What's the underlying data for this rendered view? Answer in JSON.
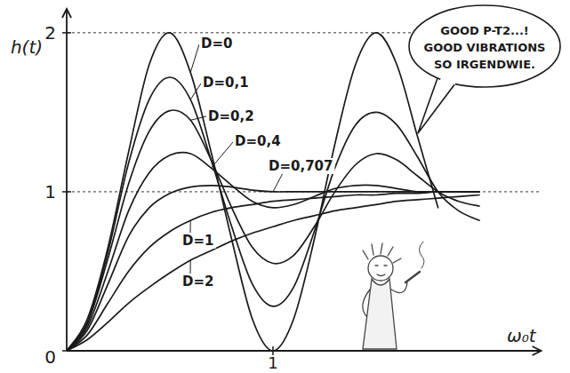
{
  "chart_data": {
    "type": "line",
    "x_label": "ω₀t",
    "y_label": "h(t)",
    "annotations": [
      "GOOD P-T2...!",
      "GOOD VIBRATIONS",
      "SO IRGENDWIE."
    ],
    "x": [
      0,
      0.1,
      0.2,
      0.3,
      0.4,
      0.5,
      0.6,
      0.7,
      0.8,
      0.9,
      1.0,
      1.1,
      1.2,
      1.3,
      1.4,
      1.5,
      1.6,
      1.7,
      1.8,
      1.9,
      2.0
    ],
    "xlim": [
      0,
      2.3
    ],
    "xticks": [
      1
    ],
    "ylim": [
      0,
      2.15
    ],
    "yticks": [
      0,
      1,
      2
    ],
    "grid": true,
    "series": [
      {
        "name": "D=0",
        "color": "#1a1a1a",
        "values": [
          0,
          0.2,
          0.65,
          1.25,
          1.8,
          2.0,
          1.75,
          1.25,
          0.7,
          0.2,
          0,
          0.2,
          0.7,
          1.3,
          1.8,
          2.0,
          1.8,
          1.35,
          0.9,
          null,
          null
        ]
      },
      {
        "name": "D=0,1",
        "color": "#1a1a1a",
        "values": [
          0,
          0.18,
          0.62,
          1.18,
          1.58,
          1.72,
          1.58,
          1.2,
          0.78,
          0.42,
          0.28,
          0.4,
          0.75,
          1.15,
          1.42,
          1.5,
          1.42,
          1.22,
          1.0,
          0.88,
          0.82
        ]
      },
      {
        "name": "D=0,2",
        "color": "#1a1a1a",
        "values": [
          0,
          0.17,
          0.58,
          1.05,
          1.38,
          1.51,
          1.45,
          1.2,
          0.9,
          0.65,
          0.55,
          0.6,
          0.78,
          1.0,
          1.17,
          1.24,
          1.2,
          1.1,
          1.0,
          0.94,
          0.91
        ]
      },
      {
        "name": "D=0,4",
        "color": "#1a1a1a",
        "values": [
          0,
          0.15,
          0.5,
          0.88,
          1.12,
          1.23,
          1.24,
          1.15,
          1.04,
          0.94,
          0.9,
          0.92,
          0.97,
          1.02,
          1.04,
          1.04,
          1.02,
          1.0,
          1.0,
          1.0,
          1.0
        ]
      },
      {
        "name": "D=0,707",
        "color": "#1a1a1a",
        "values": [
          0,
          0.13,
          0.42,
          0.72,
          0.9,
          0.99,
          1.03,
          1.04,
          1.03,
          1.01,
          1.0,
          1.0,
          1.0,
          1.0,
          1.0,
          1.0,
          1.0,
          1.0,
          1.0,
          1.0,
          1.0
        ]
      },
      {
        "name": "D=1",
        "color": "#1a1a1a",
        "values": [
          0,
          0.1,
          0.3,
          0.5,
          0.65,
          0.75,
          0.82,
          0.87,
          0.9,
          0.92,
          0.94,
          0.95,
          0.96,
          0.97,
          0.98,
          0.98,
          0.99,
          0.99,
          1.0,
          1.0,
          1.0
        ]
      },
      {
        "name": "D=2",
        "color": "#1a1a1a",
        "values": [
          0,
          0.07,
          0.18,
          0.3,
          0.4,
          0.49,
          0.57,
          0.63,
          0.69,
          0.74,
          0.78,
          0.82,
          0.85,
          0.88,
          0.9,
          0.92,
          0.94,
          0.95,
          0.96,
          0.97,
          0.98
        ]
      }
    ]
  }
}
